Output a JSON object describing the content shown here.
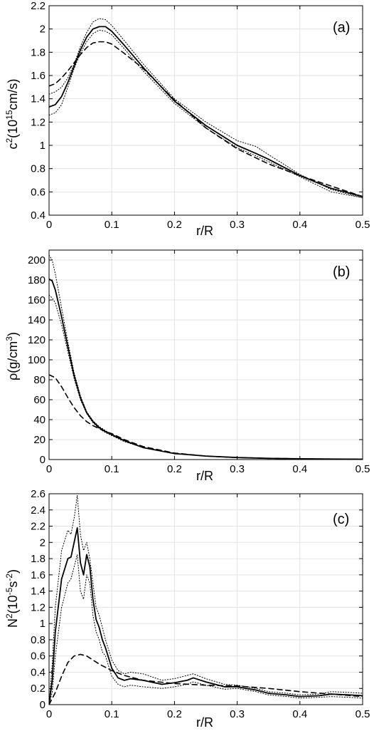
{
  "chart_data": [
    {
      "type": "line",
      "panel_label": "(a)",
      "xlabel": "r/R",
      "ylabel": {
        "base": "c",
        "sup1": "2",
        "mid": "(10",
        "sup2": "15",
        "tail": "cm/s)"
      },
      "xlim": [
        0,
        0.5
      ],
      "ylim": [
        0.4,
        2.2
      ],
      "xticks": [
        "0",
        "0.1",
        "0.2",
        "0.3",
        "0.4",
        "0.5"
      ],
      "yticks": [
        "0.4",
        "0.6",
        "0.8",
        "1",
        "1.2",
        "1.4",
        "1.6",
        "1.8",
        "2",
        "2.2"
      ],
      "grid": true,
      "series": [
        {
          "style": "solid",
          "x": [
            0,
            0.01,
            0.02,
            0.03,
            0.04,
            0.05,
            0.06,
            0.07,
            0.08,
            0.09,
            0.1,
            0.12,
            0.15,
            0.2,
            0.25,
            0.3,
            0.33,
            0.35,
            0.4,
            0.45,
            0.5
          ],
          "y": [
            1.33,
            1.35,
            1.42,
            1.54,
            1.68,
            1.82,
            1.93,
            2.0,
            2.02,
            2.02,
            1.98,
            1.86,
            1.67,
            1.38,
            1.17,
            1.0,
            0.93,
            0.88,
            0.74,
            0.63,
            0.56
          ]
        },
        {
          "style": "dashed",
          "x": [
            0,
            0.01,
            0.02,
            0.03,
            0.04,
            0.05,
            0.06,
            0.07,
            0.08,
            0.09,
            0.1,
            0.12,
            0.15,
            0.2,
            0.25,
            0.3,
            0.35,
            0.4,
            0.45,
            0.5
          ],
          "y": [
            1.51,
            1.53,
            1.58,
            1.64,
            1.71,
            1.78,
            1.84,
            1.88,
            1.89,
            1.89,
            1.87,
            1.79,
            1.66,
            1.39,
            1.15,
            0.97,
            0.84,
            0.74,
            0.65,
            0.56
          ]
        },
        {
          "style": "dotted",
          "x": [
            0,
            0.01,
            0.02,
            0.03,
            0.04,
            0.05,
            0.06,
            0.07,
            0.08,
            0.09,
            0.1,
            0.12,
            0.15,
            0.2,
            0.25,
            0.3,
            0.33,
            0.35,
            0.4,
            0.45,
            0.5
          ],
          "y": [
            1.44,
            1.46,
            1.5,
            1.58,
            1.7,
            1.85,
            1.97,
            2.06,
            2.09,
            2.08,
            2.03,
            1.9,
            1.7,
            1.4,
            1.2,
            1.04,
            0.99,
            0.92,
            0.75,
            0.62,
            0.55
          ]
        },
        {
          "style": "dotted",
          "x": [
            0,
            0.01,
            0.02,
            0.03,
            0.04,
            0.05,
            0.06,
            0.07,
            0.08,
            0.09,
            0.1,
            0.12,
            0.15,
            0.2,
            0.25,
            0.3,
            0.33,
            0.35,
            0.4,
            0.45,
            0.5
          ],
          "y": [
            1.26,
            1.28,
            1.35,
            1.5,
            1.66,
            1.79,
            1.89,
            1.96,
            1.99,
            1.98,
            1.95,
            1.83,
            1.64,
            1.36,
            1.15,
            0.98,
            0.91,
            0.86,
            0.73,
            0.6,
            0.55
          ]
        }
      ]
    },
    {
      "type": "line",
      "panel_label": "(b)",
      "xlabel": "r/R",
      "ylabel": {
        "base": "ρ(g/cm",
        "sup1": "3",
        "tail": ")"
      },
      "xlim": [
        0,
        0.5
      ],
      "ylim": [
        0,
        210
      ],
      "xticks": [
        "0",
        "0.1",
        "0.2",
        "0.3",
        "0.4",
        "0.5"
      ],
      "yticks": [
        "0",
        "20",
        "40",
        "60",
        "80",
        "100",
        "120",
        "140",
        "160",
        "180",
        "200"
      ],
      "grid": true,
      "series": [
        {
          "style": "solid",
          "x": [
            0,
            0.005,
            0.01,
            0.02,
            0.03,
            0.04,
            0.05,
            0.06,
            0.07,
            0.08,
            0.09,
            0.1,
            0.12,
            0.15,
            0.2,
            0.25,
            0.3,
            0.35,
            0.4,
            0.45,
            0.5
          ],
          "y": [
            181,
            179,
            170,
            143,
            113,
            84,
            62,
            47,
            38,
            32,
            28,
            25,
            19,
            12,
            6,
            3.5,
            2,
            1.2,
            0.8,
            0.5,
            0.3
          ]
        },
        {
          "style": "dashed",
          "x": [
            0,
            0.01,
            0.02,
            0.03,
            0.04,
            0.05,
            0.06,
            0.07,
            0.08,
            0.09,
            0.1,
            0.12,
            0.15,
            0.2,
            0.25,
            0.3,
            0.35,
            0.4,
            0.45,
            0.5
          ],
          "y": [
            85,
            82,
            73,
            62,
            52,
            44,
            38,
            34,
            31,
            28,
            26,
            20,
            13,
            6.5,
            3.5,
            2,
            1.2,
            0.8,
            0.5,
            0.3
          ]
        },
        {
          "style": "dotted",
          "x": [
            0,
            0.005,
            0.01,
            0.02,
            0.03,
            0.04,
            0.05,
            0.06,
            0.07,
            0.08,
            0.09,
            0.1,
            0.12,
            0.15,
            0.2,
            0.25,
            0.3,
            0.35,
            0.4,
            0.45,
            0.5
          ],
          "y": [
            205,
            200,
            186,
            152,
            118,
            87,
            64,
            48,
            39,
            33,
            29,
            25,
            19,
            12,
            6,
            3.5,
            2,
            1.2,
            0.8,
            0.5,
            0.3
          ]
        },
        {
          "style": "dotted",
          "x": [
            0,
            0.005,
            0.01,
            0.02,
            0.03,
            0.04,
            0.05,
            0.06,
            0.07,
            0.08,
            0.09,
            0.1,
            0.12,
            0.15,
            0.2,
            0.25,
            0.3,
            0.35,
            0.4,
            0.45,
            0.5
          ],
          "y": [
            165,
            162,
            157,
            135,
            108,
            81,
            60,
            46,
            37,
            31,
            27,
            24,
            18,
            12,
            6,
            3.5,
            2,
            1.2,
            0.8,
            0.5,
            0.3
          ]
        }
      ]
    },
    {
      "type": "line",
      "panel_label": "(c)",
      "xlabel": "r/R",
      "ylabel": {
        "base": "N",
        "sup1": "2",
        "mid": "(10",
        "sup2": "-5",
        "tail": "s",
        "sup3": "-2",
        "tail2": ")"
      },
      "xlim": [
        0,
        0.5
      ],
      "ylim": [
        0,
        2.6
      ],
      "xticks": [
        "0",
        "0.1",
        "0.2",
        "0.3",
        "0.4",
        "0.5"
      ],
      "yticks": [
        "0",
        "0.2",
        "0.4",
        "0.6",
        "0.8",
        "1",
        "1.2",
        "1.4",
        "1.6",
        "1.8",
        "2",
        "2.2",
        "2.4",
        "2.6"
      ],
      "grid": true,
      "series": [
        {
          "style": "solid",
          "x": [
            0,
            0.005,
            0.01,
            0.02,
            0.03,
            0.035,
            0.04,
            0.045,
            0.05,
            0.055,
            0.06,
            0.065,
            0.07,
            0.075,
            0.08,
            0.085,
            0.09,
            0.1,
            0.11,
            0.12,
            0.13,
            0.15,
            0.18,
            0.2,
            0.22,
            0.23,
            0.25,
            0.28,
            0.3,
            0.33,
            0.35,
            0.38,
            0.4,
            0.43,
            0.45,
            0.48,
            0.5
          ],
          "y": [
            0,
            0.3,
            0.9,
            1.55,
            1.8,
            1.82,
            2.0,
            2.18,
            1.75,
            1.6,
            1.85,
            1.7,
            1.3,
            1.05,
            0.95,
            0.8,
            0.7,
            0.45,
            0.33,
            0.3,
            0.32,
            0.3,
            0.25,
            0.27,
            0.3,
            0.33,
            0.28,
            0.22,
            0.22,
            0.18,
            0.14,
            0.12,
            0.1,
            0.11,
            0.13,
            0.12,
            0.11
          ]
        },
        {
          "style": "dashed",
          "x": [
            0,
            0.01,
            0.02,
            0.03,
            0.04,
            0.05,
            0.06,
            0.07,
            0.08,
            0.1,
            0.12,
            0.15,
            0.2,
            0.25,
            0.3,
            0.35,
            0.4,
            0.45,
            0.5
          ],
          "y": [
            0,
            0.15,
            0.35,
            0.52,
            0.6,
            0.62,
            0.6,
            0.55,
            0.5,
            0.42,
            0.36,
            0.3,
            0.26,
            0.24,
            0.23,
            0.2,
            0.16,
            0.13,
            0.1
          ]
        },
        {
          "style": "dotted",
          "x": [
            0,
            0.005,
            0.01,
            0.02,
            0.03,
            0.035,
            0.04,
            0.045,
            0.05,
            0.055,
            0.06,
            0.065,
            0.07,
            0.075,
            0.08,
            0.085,
            0.09,
            0.1,
            0.11,
            0.12,
            0.13,
            0.15,
            0.18,
            0.2,
            0.22,
            0.23,
            0.25,
            0.28,
            0.3,
            0.33,
            0.35,
            0.38,
            0.4,
            0.43,
            0.45,
            0.48,
            0.5
          ],
          "y": [
            0,
            0.5,
            1.2,
            1.9,
            2.15,
            2.1,
            2.3,
            2.58,
            2.1,
            1.9,
            2.0,
            1.8,
            1.5,
            1.2,
            1.1,
            0.95,
            0.8,
            0.55,
            0.42,
            0.38,
            0.4,
            0.38,
            0.3,
            0.32,
            0.36,
            0.38,
            0.32,
            0.25,
            0.24,
            0.2,
            0.16,
            0.14,
            0.12,
            0.13,
            0.16,
            0.15,
            0.14
          ]
        },
        {
          "style": "dotted",
          "x": [
            0,
            0.005,
            0.01,
            0.02,
            0.03,
            0.035,
            0.04,
            0.045,
            0.05,
            0.055,
            0.06,
            0.065,
            0.07,
            0.075,
            0.08,
            0.085,
            0.09,
            0.1,
            0.11,
            0.12,
            0.13,
            0.15,
            0.18,
            0.2,
            0.22,
            0.23,
            0.25,
            0.28,
            0.3,
            0.33,
            0.35,
            0.38,
            0.4,
            0.43,
            0.45,
            0.48,
            0.5
          ],
          "y": [
            0,
            0.15,
            0.6,
            1.2,
            1.5,
            1.55,
            1.7,
            1.85,
            1.4,
            1.3,
            1.6,
            1.5,
            1.1,
            0.9,
            0.8,
            0.65,
            0.6,
            0.35,
            0.25,
            0.22,
            0.24,
            0.22,
            0.2,
            0.22,
            0.25,
            0.28,
            0.24,
            0.19,
            0.2,
            0.16,
            0.12,
            0.1,
            0.08,
            0.09,
            0.1,
            0.09,
            0.08
          ]
        }
      ]
    }
  ]
}
